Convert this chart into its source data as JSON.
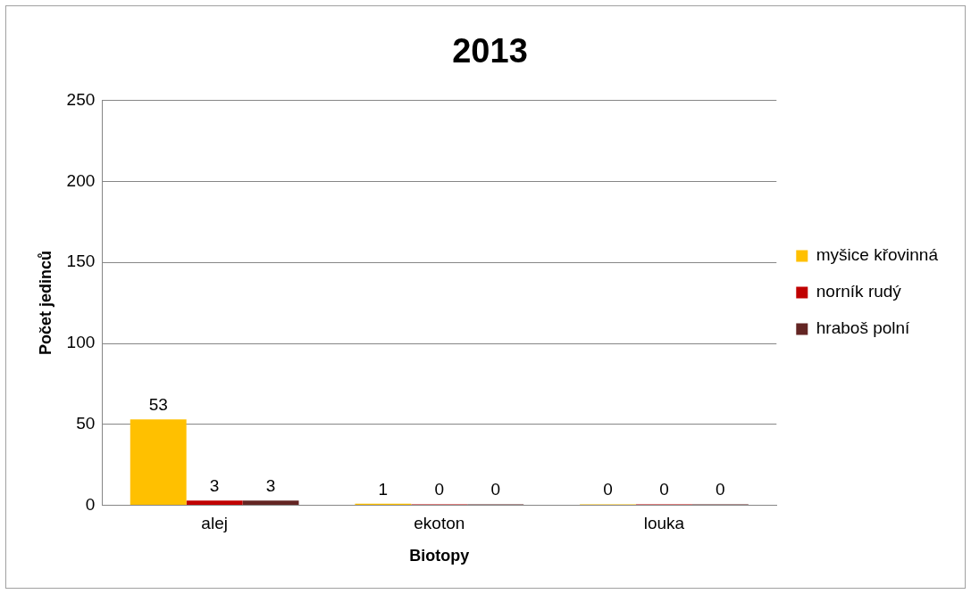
{
  "chart_data": {
    "type": "bar",
    "title": "2013",
    "xlabel": "Biotopy",
    "ylabel": "Počet jedinců",
    "categories": [
      "alej",
      "ekoton",
      "louka"
    ],
    "series": [
      {
        "name": "myšice křovinná",
        "color": "#ffc000",
        "values": [
          53,
          1,
          0
        ]
      },
      {
        "name": "norník rudý",
        "color": "#c00000",
        "values": [
          3,
          0,
          0
        ]
      },
      {
        "name": "hraboš polní",
        "color": "#632523",
        "values": [
          3,
          0,
          0
        ]
      }
    ],
    "ylim": [
      0,
      250
    ],
    "yticks": [
      0,
      50,
      100,
      150,
      200,
      250
    ],
    "grid": "y",
    "legend": "right",
    "data_labels": true
  }
}
